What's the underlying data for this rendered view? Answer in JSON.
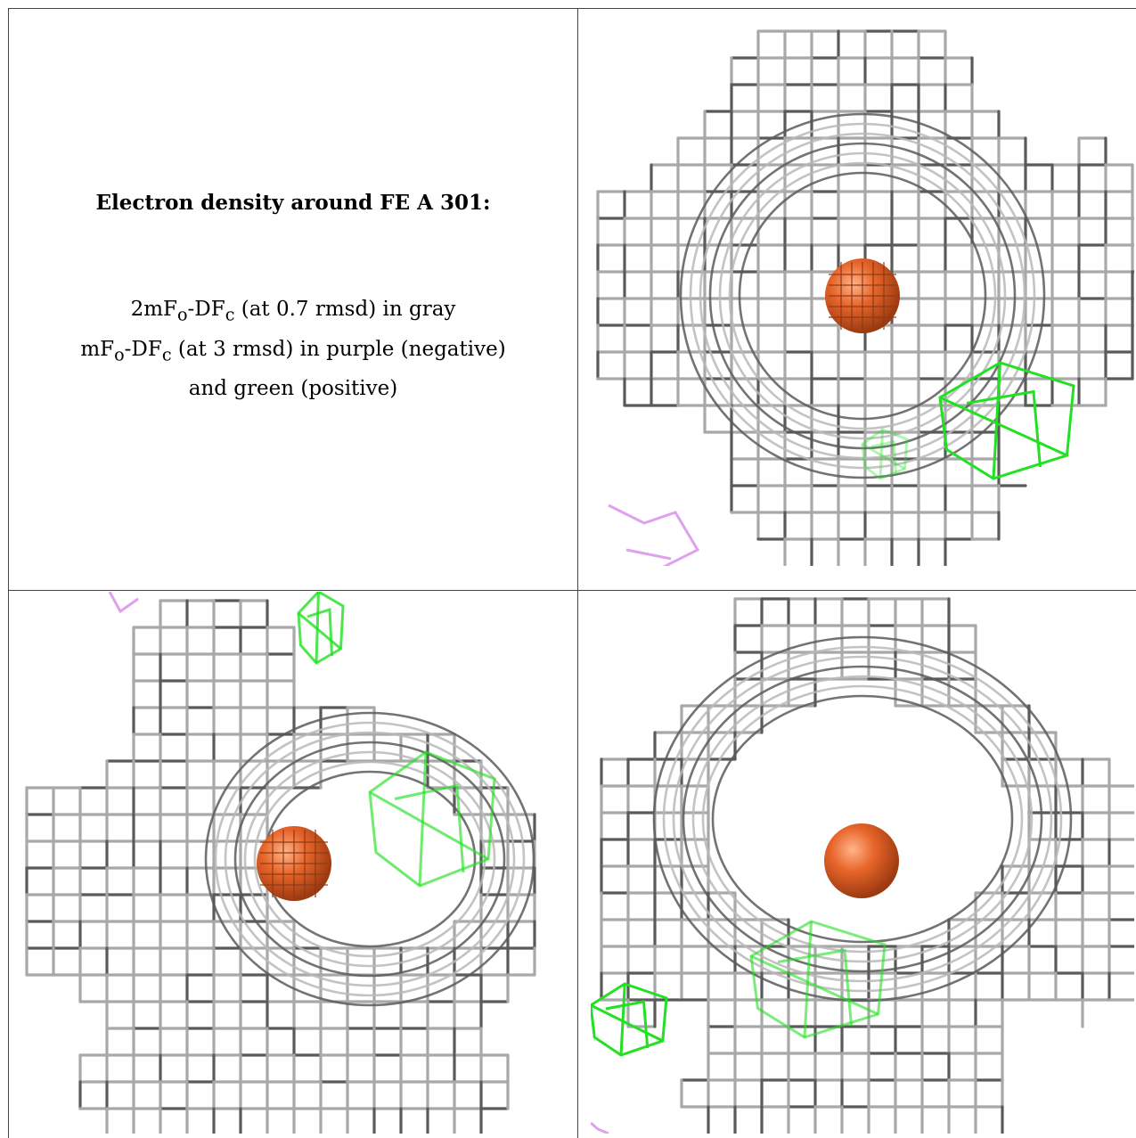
{
  "caption": {
    "title": "Electron density around FE A 301:",
    "line1": "2mFₒ-DFᴄ (at 0.7 rmsd) in gray",
    "line2": "mFₒ-DFᴄ (at 3 rmsd) in purple (negative)",
    "line3": "and green (positive)"
  },
  "colors": {
    "mesh_gray": "#a8a8a8",
    "mesh_dark": "#5a5a5a",
    "positive_green": "#22e022",
    "negative_purple": "#e0a0f0",
    "iron_atom": "#e8652a"
  },
  "panels": [
    {
      "name": "view-1",
      "atom": "FE A 301"
    },
    {
      "name": "view-2",
      "atom": "FE A 301"
    },
    {
      "name": "view-3",
      "atom": "FE A 301"
    }
  ]
}
